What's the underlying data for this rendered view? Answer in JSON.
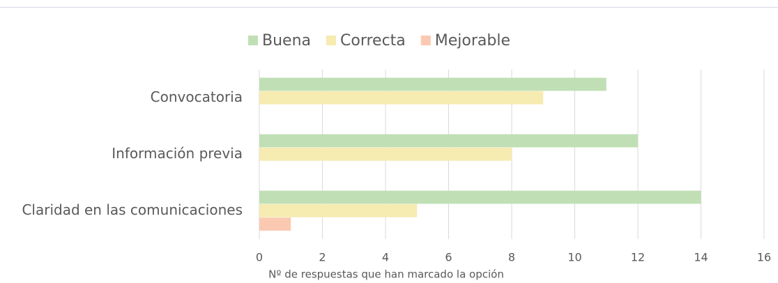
{
  "chart_data": {
    "type": "hbar",
    "categories": [
      "Convocatoria",
      "Información previa",
      "Claridad en las comunicaciones"
    ],
    "series": [
      {
        "name": "Buena",
        "color": "#c0dfb5",
        "values": [
          11,
          12,
          14
        ]
      },
      {
        "name": "Correcta",
        "color": "#f6ebb0",
        "values": [
          9,
          8,
          5
        ]
      },
      {
        "name": "Mejorable",
        "color": "#fbc9b1",
        "values": [
          0,
          0,
          1
        ]
      }
    ],
    "x_label": "Nº de respuestas que han marcado la opción",
    "xlim": [
      0,
      16
    ],
    "xticks": [
      0,
      2,
      4,
      6,
      8,
      10,
      12,
      14,
      16
    ],
    "grid": true,
    "legend": "top"
  }
}
